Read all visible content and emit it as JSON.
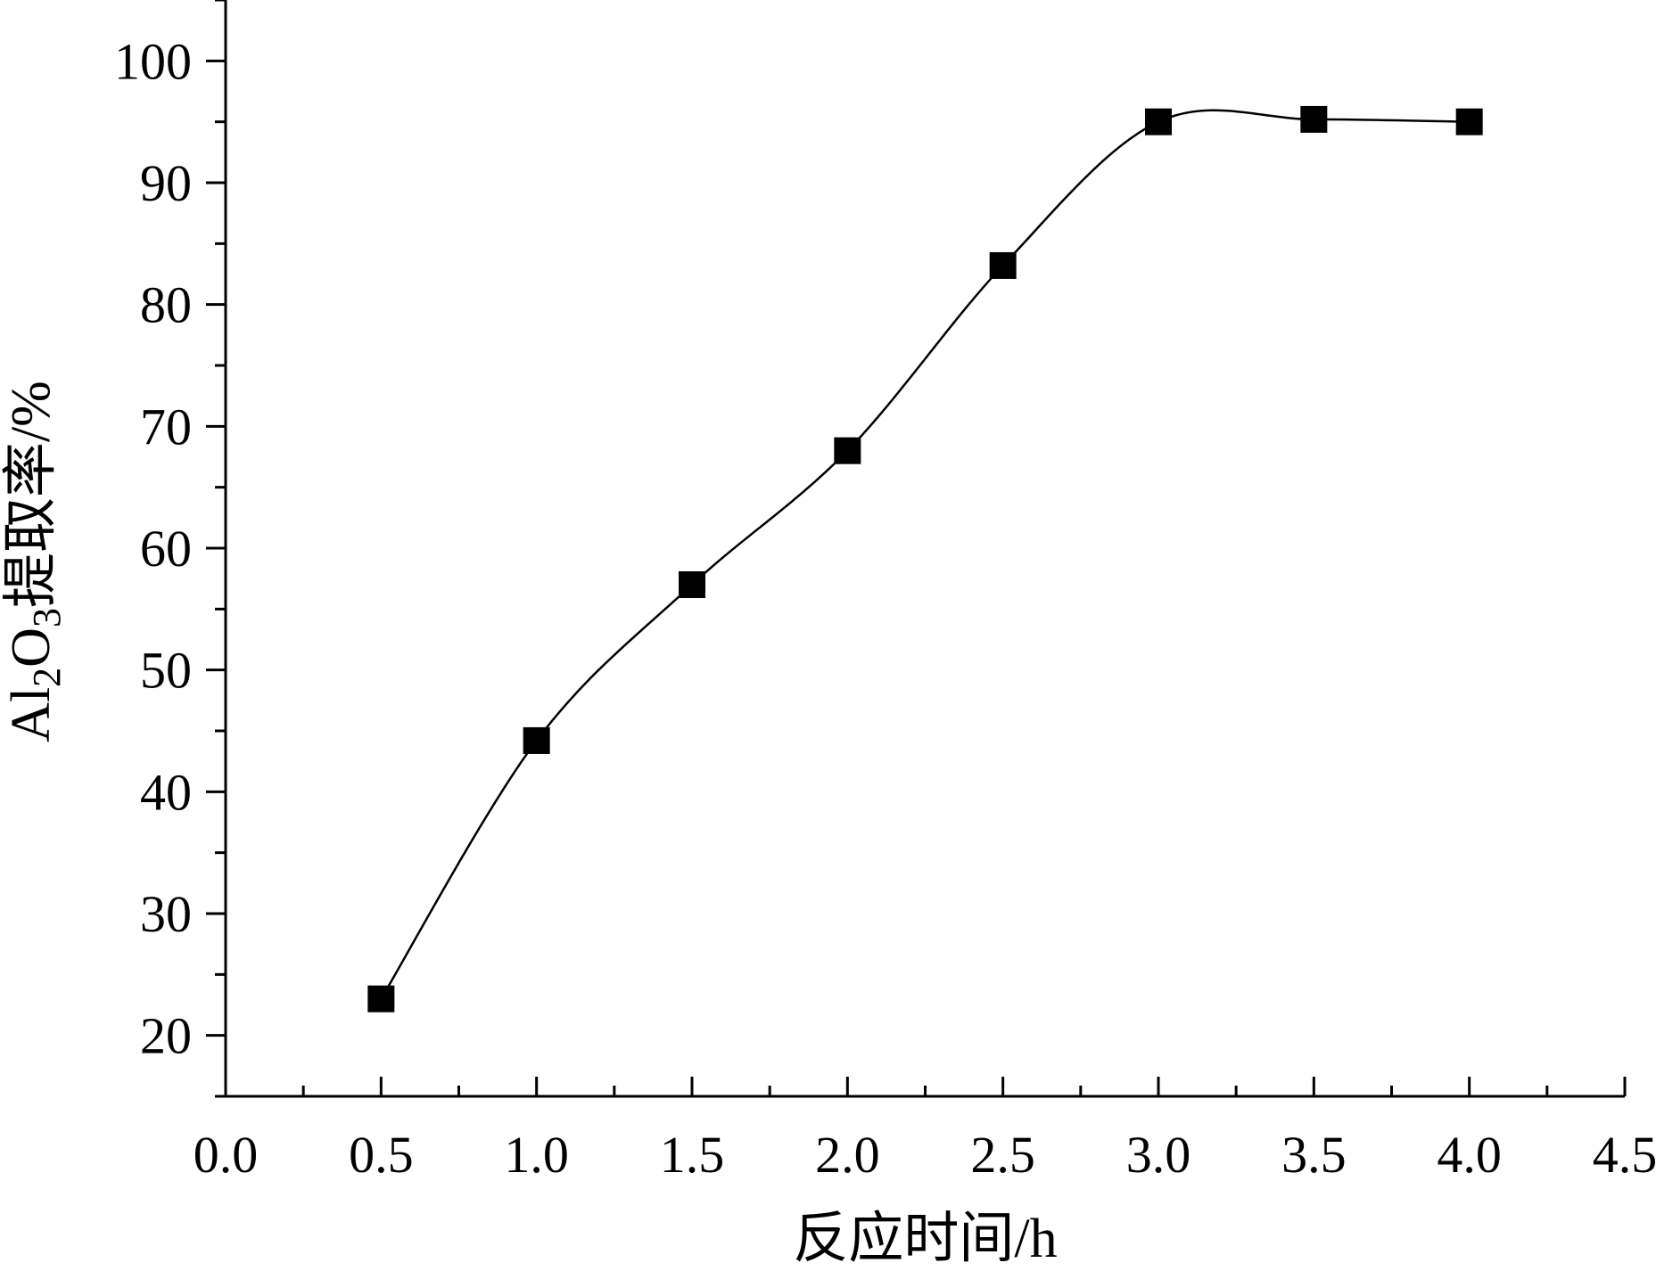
{
  "chart_data": {
    "type": "line",
    "title": "",
    "xlabel": "反应时间/h",
    "ylabel": {
      "parts": [
        {
          "text": "Al",
          "sub": false
        },
        {
          "text": "2",
          "sub": true
        },
        {
          "text": "O",
          "sub": false
        },
        {
          "text": "3",
          "sub": true
        },
        {
          "text": "提取率/%",
          "sub": false
        }
      ]
    },
    "xlim": [
      0.0,
      4.5
    ],
    "ylim": [
      15,
      105
    ],
    "x_ticks": [
      0.0,
      0.5,
      1.0,
      1.5,
      2.0,
      2.5,
      3.0,
      3.5,
      4.0,
      4.5
    ],
    "x_tick_labels": [
      "0.0",
      "0.5",
      "1.0",
      "1.5",
      "2.0",
      "2.5",
      "3.0",
      "3.5",
      "4.0",
      "4.5"
    ],
    "y_ticks": [
      20,
      30,
      40,
      50,
      60,
      70,
      80,
      90,
      100
    ],
    "y_tick_labels": [
      "20",
      "30",
      "40",
      "50",
      "60",
      "70",
      "80",
      "90",
      "100"
    ],
    "grid": false,
    "marker": "square",
    "smooth": true,
    "series": [
      {
        "x": [
          0.5,
          1.0,
          1.5,
          2.0,
          2.5,
          3.0,
          3.5,
          4.0
        ],
        "values": [
          23.0,
          44.2,
          57.0,
          68.0,
          83.2,
          95.0,
          95.2,
          95.0
        ]
      }
    ]
  }
}
